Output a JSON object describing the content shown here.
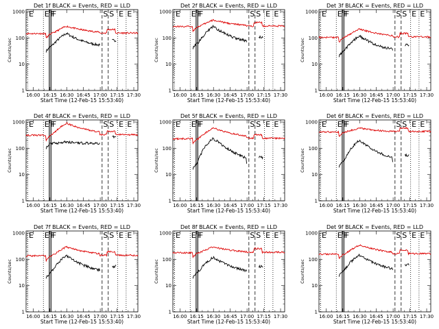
{
  "chart_data": [
    {
      "type": "line",
      "title": "Det 1f  BLACK = Events, RED = LLD",
      "base_black": 45,
      "base_red": 140,
      "peak_black": 150,
      "peak_red": 280
    },
    {
      "type": "line",
      "title": "Det 2f  BLACK = Events, RED = LLD",
      "base_black": 60,
      "base_red": 260,
      "peak_black": 270,
      "peak_red": 480
    },
    {
      "type": "line",
      "title": "Det 3f  BLACK = Events, RED = LLD",
      "base_black": 30,
      "base_red": 100,
      "peak_black": 120,
      "peak_red": 220
    },
    {
      "type": "line",
      "title": "Det 4f  BLACK = Events, RED = LLD",
      "base_black": 150,
      "base_red": 300,
      "peak_black": 180,
      "peak_red": 900
    },
    {
      "type": "line",
      "title": "Det 5f  BLACK = Events, RED = LLD",
      "base_black": 25,
      "base_red": 220,
      "peak_black": 240,
      "peak_red": 600
    },
    {
      "type": "line",
      "title": "Det 6f  BLACK = Events, RED = LLD",
      "base_black": 30,
      "base_red": 400,
      "peak_black": 200,
      "peak_red": 600
    },
    {
      "type": "line",
      "title": "Det 7f  BLACK = Events, RED = LLD",
      "base_black": 30,
      "base_red": 130,
      "peak_black": 140,
      "peak_red": 300
    },
    {
      "type": "line",
      "title": "Det 8f  BLACK = Events, RED = LLD",
      "base_black": 30,
      "base_red": 170,
      "peak_black": 120,
      "peak_red": 300
    },
    {
      "type": "line",
      "title": "Det 9f  BLACK = Events, RED = LLD",
      "base_black": 35,
      "base_red": 150,
      "peak_black": 150,
      "peak_red": 350
    }
  ],
  "common": {
    "xlabel": "Start Time (12-Feb-15 15:53:40)",
    "ylabel": "Counts/sec",
    "xticks": [
      "16:00",
      "16:15",
      "16:30",
      "16:45",
      "17:00",
      "17:15",
      "17:30"
    ],
    "xtick_minutes": [
      6.33,
      21.33,
      36.33,
      51.33,
      66.33,
      81.33,
      96.33
    ],
    "xlim_minutes": [
      0,
      100
    ],
    "yticks": [
      "1",
      "10",
      "100",
      "1000"
    ],
    "ytick_values": [
      1,
      10,
      100,
      1000
    ],
    "ylim": [
      1,
      1200
    ],
    "yscale": "log",
    "series": [
      "BLACK = Events",
      "RED = LLD"
    ],
    "series_colors": {
      "events": "#000000",
      "lld": "#dd0000"
    },
    "markers": [
      {
        "label": "E",
        "x_minutes": 1.5,
        "style": "dotted"
      },
      {
        "label": "E",
        "x_minutes": 15.5,
        "style": "dotted"
      },
      {
        "label": "F",
        "x_minutes": 20.8,
        "style": "solid"
      },
      {
        "label": "F",
        "x_minutes": 22.3,
        "style": "solid"
      },
      {
        "label": "S",
        "x_minutes": 68.0,
        "style": "dashed"
      },
      {
        "label": "S",
        "x_minutes": 73.5,
        "style": "dashed"
      },
      {
        "label": "E",
        "x_minutes": 82.0,
        "style": "dotted"
      },
      {
        "label": "E",
        "x_minutes": 89.5,
        "style": "dotted"
      }
    ]
  }
}
